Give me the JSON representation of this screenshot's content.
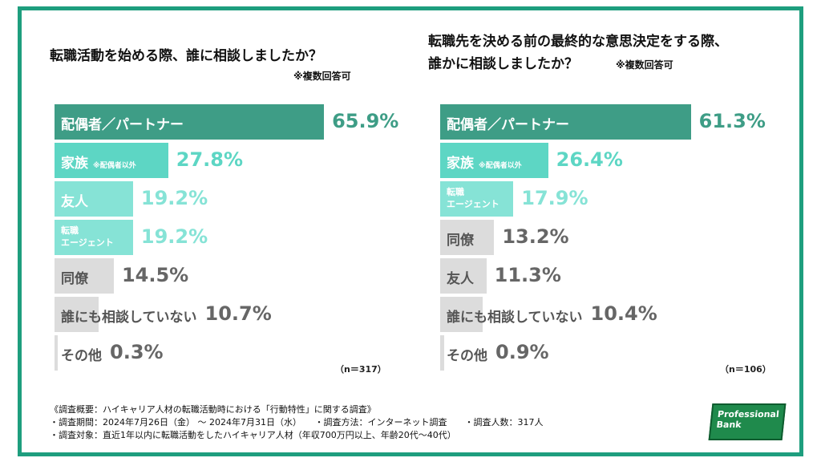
{
  "left_chart": {
    "title": "転職活動を始める際、誰に相談しましたか？",
    "note": "※複数回答可",
    "n_label": "（n＝317）"
  },
  "right_chart": {
    "title_line1": "転職先を決める前の最終的な意思決定をする際、",
    "title_line2": "誰かに相談しましたか？",
    "note": "※複数回答可",
    "n_label": "（n＝106）"
  },
  "chart_data": [
    {
      "type": "bar",
      "orientation": "horizontal",
      "title": "転職活動を始める際、誰に相談しましたか？",
      "note": "※複数回答可",
      "n": "n＝317",
      "categories": [
        "配偶者／パートナー",
        "家族 ※配偶者以外",
        "友人",
        "転職エージェント",
        "同僚",
        "誰にも相談していない",
        "その他"
      ],
      "values": [
        65.9,
        27.8,
        19.2,
        19.2,
        14.5,
        10.7,
        0.3
      ],
      "value_labels": [
        "65.9%",
        "27.8%",
        "19.2%",
        "19.2%",
        "14.5%",
        "10.7%",
        "0.3%"
      ],
      "colors": [
        "#3e9d86",
        "#5dd6c4",
        "#86e3d6",
        "#86e3d6",
        "#dcdcdc",
        "#dcdcdc",
        "#dcdcdc"
      ],
      "label_colors": [
        "#3e9d86",
        "#5dd6c4",
        "#86e3d6",
        "#86e3d6",
        "#666666",
        "#666666",
        "#666666"
      ],
      "bars": [
        {
          "main": "配偶者／パートナー"
        },
        {
          "main": "家族",
          "sub": "※配偶者以外"
        },
        {
          "main": "友人"
        },
        {
          "main_small": "転職",
          "sub2": "エージェント"
        },
        {
          "main": "同僚"
        },
        {
          "main": "誰にも相談していない"
        },
        {
          "main": "その他"
        }
      ]
    },
    {
      "type": "bar",
      "orientation": "horizontal",
      "title": "転職先を決める前の最終的な意思決定をする際、誰かに相談しましたか？",
      "note": "※複数回答可",
      "n": "n＝106",
      "categories": [
        "配偶者／パートナー",
        "家族 ※配偶者以外",
        "転職エージェント",
        "同僚",
        "友人",
        "誰にも相談していない",
        "その他"
      ],
      "values": [
        61.3,
        26.4,
        17.9,
        13.2,
        11.3,
        10.4,
        0.9
      ],
      "value_labels": [
        "61.3%",
        "26.4%",
        "17.9%",
        "13.2%",
        "11.3%",
        "10.4%",
        "0.9%"
      ],
      "colors": [
        "#3e9d86",
        "#5dd6c4",
        "#86e3d6",
        "#dcdcdc",
        "#dcdcdc",
        "#dcdcdc",
        "#dcdcdc"
      ],
      "label_colors": [
        "#3e9d86",
        "#5dd6c4",
        "#86e3d6",
        "#666666",
        "#666666",
        "#666666",
        "#666666"
      ],
      "bars": [
        {
          "main": "配偶者／パートナー"
        },
        {
          "main": "家族",
          "sub": "※配偶者以外"
        },
        {
          "main_small": "転職",
          "sub2": "エージェント"
        },
        {
          "main": "同僚"
        },
        {
          "main": "友人"
        },
        {
          "main": "誰にも相談していない"
        },
        {
          "main": "その他"
        }
      ]
    }
  ],
  "footer": {
    "line1": "《調査概要：ハイキャリア人材の転職活動時における「行動特性」に関する調査》",
    "line2": "・調査期間：2024年7月26日（金） 〜 2024年7月31日（水）　　・調査方法：インターネット調査　　・調査人数：317人",
    "line3": "・調査対象：直近1年以内に転職活動をしたハイキャリア人材（年収700万円以上、年齢20代〜40代）"
  },
  "logo": {
    "line1": "Professional",
    "line2": "Bank"
  }
}
